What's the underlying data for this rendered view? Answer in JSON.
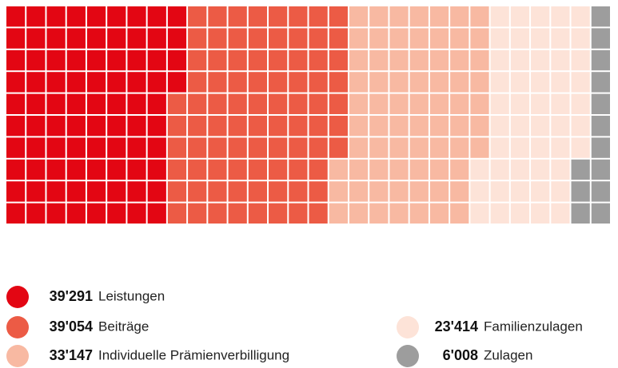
{
  "chart_data": {
    "type": "waffle",
    "series": [
      {
        "name": "Leistungen",
        "color": "#e30613",
        "values": [
          39291
        ],
        "value_labels": [
          "39'291"
        ]
      },
      {
        "name": "Beiträge",
        "color": "#ec5b45",
        "values": [
          39054
        ],
        "value_labels": [
          "39'054"
        ]
      },
      {
        "name": "Individuelle Prämienverbilligung",
        "color": "#f8b9a2",
        "values": [
          33147
        ],
        "value_labels": [
          "33'147"
        ]
      },
      {
        "name": "Familienzulagen",
        "color": "#fde3d8",
        "values": [
          23414
        ],
        "value_labels": [
          "23'414"
        ]
      },
      {
        "name": "Zulagen",
        "color": "#9d9d9d",
        "values": [
          6008
        ],
        "value_labels": [
          "6'008"
        ]
      }
    ]
  }
}
